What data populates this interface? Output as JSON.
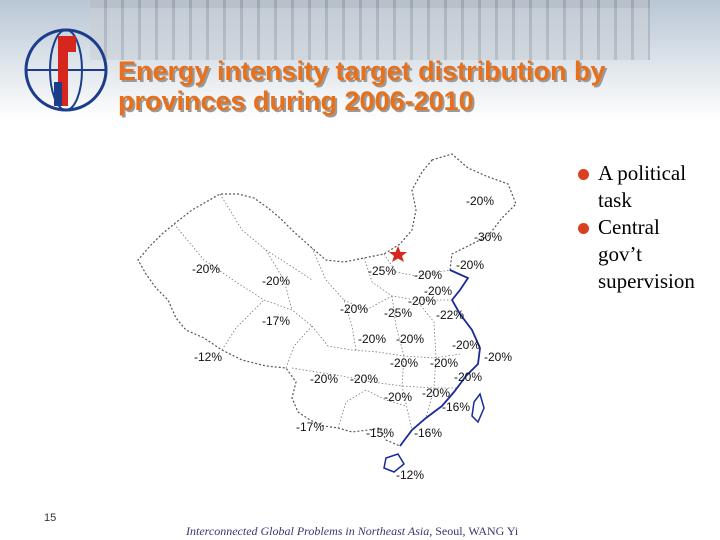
{
  "header": {
    "title_line1": "Energy intensity target distribution by",
    "title_line2": "provinces during 2006-2010"
  },
  "map": {
    "labels": [
      "-20%",
      "-30%",
      "-20%",
      "-20%",
      "-25%",
      "-20%",
      "-20%",
      "-20%",
      "-20%",
      "-17%",
      "-20%",
      "-25%",
      "-22%",
      "-20%",
      "-20%",
      "-20%",
      "-12%",
      "-20%",
      "-20%",
      "-20%",
      "-20%",
      "-20%",
      "-20%",
      "-20%",
      "-16%",
      "-20%",
      "-17%",
      "-15%",
      "-16%",
      "-12%"
    ]
  },
  "bullets": [
    {
      "line1": "A political",
      "line2": "task"
    },
    {
      "line1": "Central",
      "line2": "gov’t",
      "line3": "supervision"
    }
  ],
  "footer": {
    "slide_number": "15",
    "text_italic": "Interconnected Global Problems in Northeast Asia,",
    "text_plain": " Seoul,  WANG Yi"
  },
  "colors": {
    "title": "#e8701a",
    "bullet": "#d94020",
    "coast": "#1a2a9a"
  }
}
